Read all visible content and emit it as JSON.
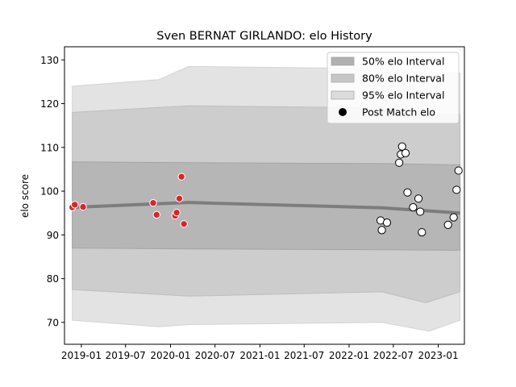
{
  "chart_data": {
    "type": "scatter",
    "title": "Sven BERNAT GIRLANDO: elo History",
    "xlabel": "",
    "ylabel": "elo score",
    "ylim": [
      65,
      133
    ],
    "xlim": [
      "2018-10-24",
      "2023-04-18"
    ],
    "grid": false,
    "legend_position": "top-right",
    "x_ticks": [
      "2019-01",
      "2019-07",
      "2020-01",
      "2020-07",
      "2021-01",
      "2021-07",
      "2022-01",
      "2022-07",
      "2023-01"
    ],
    "y_ticks": [
      70,
      80,
      90,
      100,
      110,
      120,
      130
    ],
    "legend": [
      {
        "label": "50% elo Interval",
        "kind": "band",
        "color": "#b0b0b0"
      },
      {
        "label": "80% elo Interval",
        "kind": "band",
        "color": "#c8c8c8"
      },
      {
        "label": "95% elo Interval",
        "kind": "band",
        "color": "#dcdcdc"
      },
      {
        "label": "Post Match elo",
        "kind": "marker",
        "color": "#000000"
      }
    ],
    "colors": {
      "past_match": "#d62728",
      "recent_match": "#ffffff",
      "marker_edge_recent": "#000000",
      "marker_edge_past": "#ffffff",
      "mean_line": "#808080"
    },
    "series": [
      {
        "name": "50% elo Interval",
        "kind": "band",
        "x": [
          "2018-11-25",
          "2020-03-15",
          "2022-05-15",
          "2023-03-31"
        ],
        "lower": [
          87,
          86.8,
          86.6,
          86.5
        ],
        "upper": [
          106.7,
          106.5,
          106.3,
          106.0
        ]
      },
      {
        "name": "80% elo Interval",
        "kind": "band",
        "x": [
          "2018-11-25",
          "2020-03-15",
          "2022-05-15",
          "2022-11-10",
          "2023-03-31"
        ],
        "lower": [
          77.5,
          76.0,
          77.0,
          74.5,
          77.0
        ],
        "upper": [
          118.0,
          119.5,
          119.0,
          117.5,
          117.5
        ]
      },
      {
        "name": "95% elo Interval",
        "kind": "band",
        "x": [
          "2018-11-25",
          "2019-11-15",
          "2020-03-15",
          "2022-05-15",
          "2022-11-25",
          "2023-03-31"
        ],
        "lower": [
          70.5,
          69.0,
          69.5,
          70.0,
          68.0,
          70.5
        ],
        "upper": [
          124.0,
          125.5,
          128.5,
          128.0,
          127.0,
          127.0
        ]
      },
      {
        "name": "Mean elo",
        "kind": "line",
        "x": [
          "2018-11-25",
          "2020-03-15",
          "2022-05-15",
          "2023-03-31"
        ],
        "y": [
          96.3,
          97.4,
          96.2,
          95.0
        ]
      },
      {
        "name": "Post Match elo",
        "kind": "points",
        "points": [
          {
            "x": "2018-11-25",
            "y": 96.3,
            "recent": false
          },
          {
            "x": "2018-12-05",
            "y": 96.9,
            "recent": false
          },
          {
            "x": "2019-01-08",
            "y": 96.4,
            "recent": false
          },
          {
            "x": "2019-10-22",
            "y": 97.3,
            "recent": false
          },
          {
            "x": "2019-11-05",
            "y": 94.6,
            "recent": false
          },
          {
            "x": "2020-01-20",
            "y": 94.4,
            "recent": false
          },
          {
            "x": "2020-01-26",
            "y": 95.1,
            "recent": false
          },
          {
            "x": "2020-02-06",
            "y": 98.3,
            "recent": false
          },
          {
            "x": "2020-02-15",
            "y": 103.3,
            "recent": false
          },
          {
            "x": "2020-02-25",
            "y": 92.5,
            "recent": false
          },
          {
            "x": "2022-05-10",
            "y": 93.3,
            "recent": true
          },
          {
            "x": "2022-05-15",
            "y": 91.1,
            "recent": true
          },
          {
            "x": "2022-06-05",
            "y": 92.8,
            "recent": true
          },
          {
            "x": "2022-07-25",
            "y": 106.5,
            "recent": true
          },
          {
            "x": "2022-08-01",
            "y": 108.4,
            "recent": true
          },
          {
            "x": "2022-08-06",
            "y": 110.2,
            "recent": true
          },
          {
            "x": "2022-08-20",
            "y": 108.7,
            "recent": true
          },
          {
            "x": "2022-08-28",
            "y": 99.7,
            "recent": true
          },
          {
            "x": "2022-09-20",
            "y": 96.3,
            "recent": true
          },
          {
            "x": "2022-10-12",
            "y": 98.3,
            "recent": true
          },
          {
            "x": "2022-10-19",
            "y": 95.3,
            "recent": true
          },
          {
            "x": "2022-10-26",
            "y": 90.6,
            "recent": true
          },
          {
            "x": "2023-02-10",
            "y": 92.3,
            "recent": true
          },
          {
            "x": "2023-03-05",
            "y": 94.0,
            "recent": true
          },
          {
            "x": "2023-03-17",
            "y": 100.3,
            "recent": true
          },
          {
            "x": "2023-03-25",
            "y": 104.7,
            "recent": true
          }
        ]
      }
    ]
  }
}
